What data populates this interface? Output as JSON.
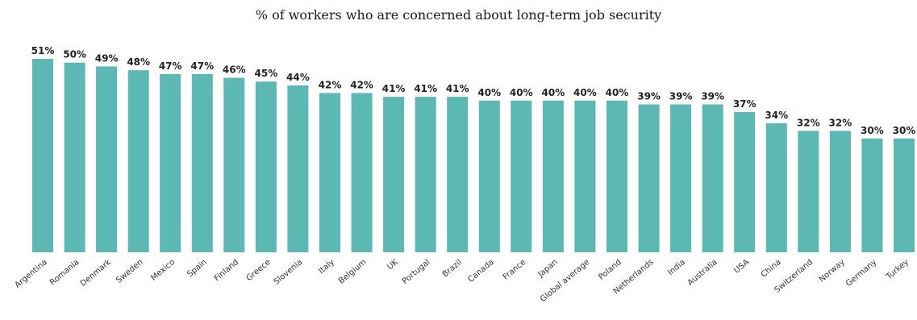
{
  "colors": {
    "bar": "#5bb8b3",
    "background": "#ffffff"
  },
  "chart_data": {
    "type": "bar",
    "title": "% of workers who are concerned about long-term job security",
    "xlabel": "",
    "ylabel": "",
    "ylim": [
      0,
      51
    ],
    "grid": false,
    "categories": [
      "Argentina",
      "Romania",
      "Denmark",
      "Sweden",
      "Mexico",
      "Spain",
      "Finland",
      "Greece",
      "Slovenia",
      "Italy",
      "Belgium",
      "UK",
      "Portugal",
      "Brazil",
      "Canada",
      "France",
      "Japan",
      "Global average",
      "Poland",
      "Netherlands",
      "India",
      "Australia",
      "USA",
      "China",
      "Switzerland",
      "Norway",
      "Germany",
      "Turkey"
    ],
    "values": [
      51,
      50,
      49,
      48,
      47,
      47,
      46,
      45,
      44,
      42,
      42,
      41,
      41,
      41,
      40,
      40,
      40,
      40,
      40,
      39,
      39,
      39,
      37,
      34,
      32,
      32,
      30,
      30
    ],
    "value_labels": [
      "51%",
      "50%",
      "49%",
      "48%",
      "47%",
      "47%",
      "46%",
      "45%",
      "44%",
      "42%",
      "42%",
      "41%",
      "41%",
      "41%",
      "40%",
      "40%",
      "40%",
      "40%",
      "40%",
      "39%",
      "39%",
      "39%",
      "37%",
      "34%",
      "32%",
      "32%",
      "30%",
      "30%"
    ]
  }
}
